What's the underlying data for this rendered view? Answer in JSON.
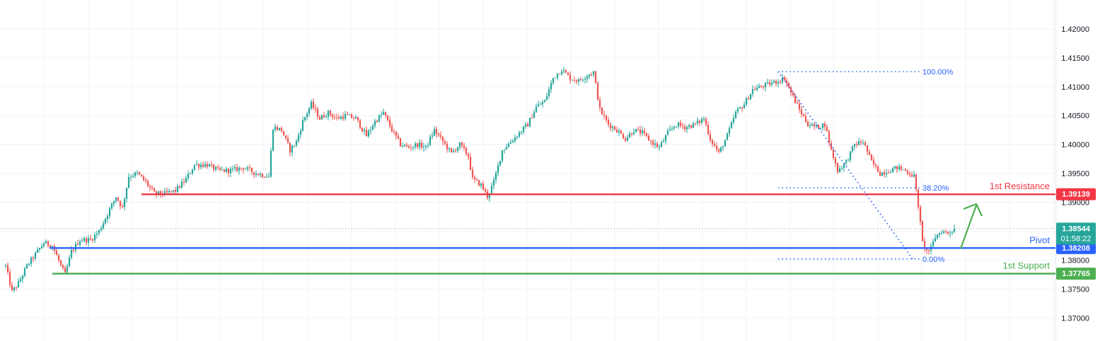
{
  "chart_data": {
    "type": "candlestick",
    "ylim": [
      1.366,
      1.425
    ],
    "y_ticks": [
      "1.37000",
      "1.37500",
      "1.38000",
      "1.38500",
      "1.39000",
      "1.39500",
      "1.40000",
      "1.40500",
      "1.41000",
      "1.41500",
      "1.42000"
    ],
    "grid": true,
    "candle_colors": {
      "up": "#26a69a",
      "down": "#ef5350"
    },
    "series_anchors": [
      [
        0,
        1.379
      ],
      [
        3,
        1.3745
      ],
      [
        6,
        1.376
      ],
      [
        10,
        1.379
      ],
      [
        14,
        1.381
      ],
      [
        18,
        1.383
      ],
      [
        22,
        1.3825
      ],
      [
        26,
        1.379
      ],
      [
        28,
        1.3775
      ],
      [
        31,
        1.3815
      ],
      [
        35,
        1.3835
      ],
      [
        40,
        1.3835
      ],
      [
        44,
        1.385
      ],
      [
        48,
        1.388
      ],
      [
        52,
        1.391
      ],
      [
        55,
        1.389
      ],
      [
        58,
        1.3945
      ],
      [
        62,
        1.395
      ],
      [
        66,
        1.3935
      ],
      [
        70,
        1.3915
      ],
      [
        75,
        1.3915
      ],
      [
        80,
        1.392
      ],
      [
        85,
        1.394
      ],
      [
        89,
        1.3965
      ],
      [
        95,
        1.3965
      ],
      [
        100,
        1.3955
      ],
      [
        106,
        1.3955
      ],
      [
        112,
        1.396
      ],
      [
        118,
        1.395
      ],
      [
        124,
        1.3945
      ],
      [
        126,
        1.403
      ],
      [
        130,
        1.4025
      ],
      [
        134,
        1.399
      ],
      [
        137,
        1.4005
      ],
      [
        140,
        1.404
      ],
      [
        144,
        1.407
      ],
      [
        148,
        1.4045
      ],
      [
        152,
        1.4055
      ],
      [
        156,
        1.4045
      ],
      [
        160,
        1.405
      ],
      [
        165,
        1.4045
      ],
      [
        170,
        1.4015
      ],
      [
        174,
        1.404
      ],
      [
        178,
        1.4055
      ],
      [
        182,
        1.4025
      ],
      [
        186,
        1.4
      ],
      [
        190,
        1.3995
      ],
      [
        194,
        1.4
      ],
      [
        198,
        1.3995
      ],
      [
        202,
        1.4025
      ],
      [
        206,
        1.4005
      ],
      [
        210,
        1.3985
      ],
      [
        214,
        1.4
      ],
      [
        218,
        1.398
      ],
      [
        220,
        1.394
      ],
      [
        224,
        1.393
      ],
      [
        227,
        1.391
      ],
      [
        230,
        1.3935
      ],
      [
        234,
        1.399
      ],
      [
        238,
        1.4005
      ],
      [
        242,
        1.402
      ],
      [
        246,
        1.4035
      ],
      [
        250,
        1.4065
      ],
      [
        254,
        1.4075
      ],
      [
        258,
        1.4115
      ],
      [
        262,
        1.413
      ],
      [
        266,
        1.4115
      ],
      [
        270,
        1.411
      ],
      [
        274,
        1.412
      ],
      [
        277,
        1.4125
      ],
      [
        280,
        1.406
      ],
      [
        284,
        1.4035
      ],
      [
        288,
        1.4025
      ],
      [
        292,
        1.401
      ],
      [
        296,
        1.4025
      ],
      [
        300,
        1.402
      ],
      [
        304,
        1.4005
      ],
      [
        308,
        1.3995
      ],
      [
        312,
        1.402
      ],
      [
        316,
        1.4035
      ],
      [
        320,
        1.403
      ],
      [
        325,
        1.4035
      ],
      [
        329,
        1.4045
      ],
      [
        332,
        1.401
      ],
      [
        336,
        1.3985
      ],
      [
        340,
        1.4015
      ],
      [
        344,
        1.4055
      ],
      [
        348,
        1.407
      ],
      [
        352,
        1.4095
      ],
      [
        356,
        1.41
      ],
      [
        360,
        1.4105
      ],
      [
        364,
        1.411
      ],
      [
        367,
        1.4115
      ],
      [
        370,
        1.409
      ],
      [
        374,
        1.406
      ],
      [
        378,
        1.4035
      ],
      [
        382,
        1.403
      ],
      [
        386,
        1.4035
      ],
      [
        389,
        1.399
      ],
      [
        392,
        1.3955
      ],
      [
        396,
        1.397
      ],
      [
        400,
        1.4
      ],
      [
        404,
        1.4005
      ],
      [
        408,
        1.397
      ],
      [
        412,
        1.395
      ],
      [
        416,
        1.3955
      ],
      [
        420,
        1.396
      ],
      [
        424,
        1.3955
      ],
      [
        428,
        1.3945
      ],
      [
        430,
        1.3895
      ],
      [
        432,
        1.383
      ],
      [
        434,
        1.3815
      ],
      [
        436,
        1.382
      ],
      [
        438,
        1.384
      ],
      [
        441,
        1.385
      ],
      [
        444,
        1.3847
      ],
      [
        447,
        1.3854
      ]
    ],
    "levels": [
      {
        "name": "1st Resistance",
        "value": 1.39139,
        "label": "1.39139",
        "color": "#f23645"
      },
      {
        "name": "Pivot",
        "value": 1.38208,
        "label": "1.38208",
        "color": "#2962ff"
      },
      {
        "name": "1st Support",
        "value": 1.37765,
        "label": "1.37765",
        "color": "#4caf50"
      }
    ],
    "current_price": {
      "value": 1.38544,
      "label": "1.38544",
      "countdown": "01:58:22",
      "color": "#26a69a"
    },
    "fibonacci": [
      {
        "label": "100.00%",
        "value": 1.4126
      },
      {
        "label": "38.20%",
        "value": 1.3925
      },
      {
        "label": "0.00%",
        "value": 1.3802
      }
    ],
    "fib_color": "#2962ff"
  }
}
